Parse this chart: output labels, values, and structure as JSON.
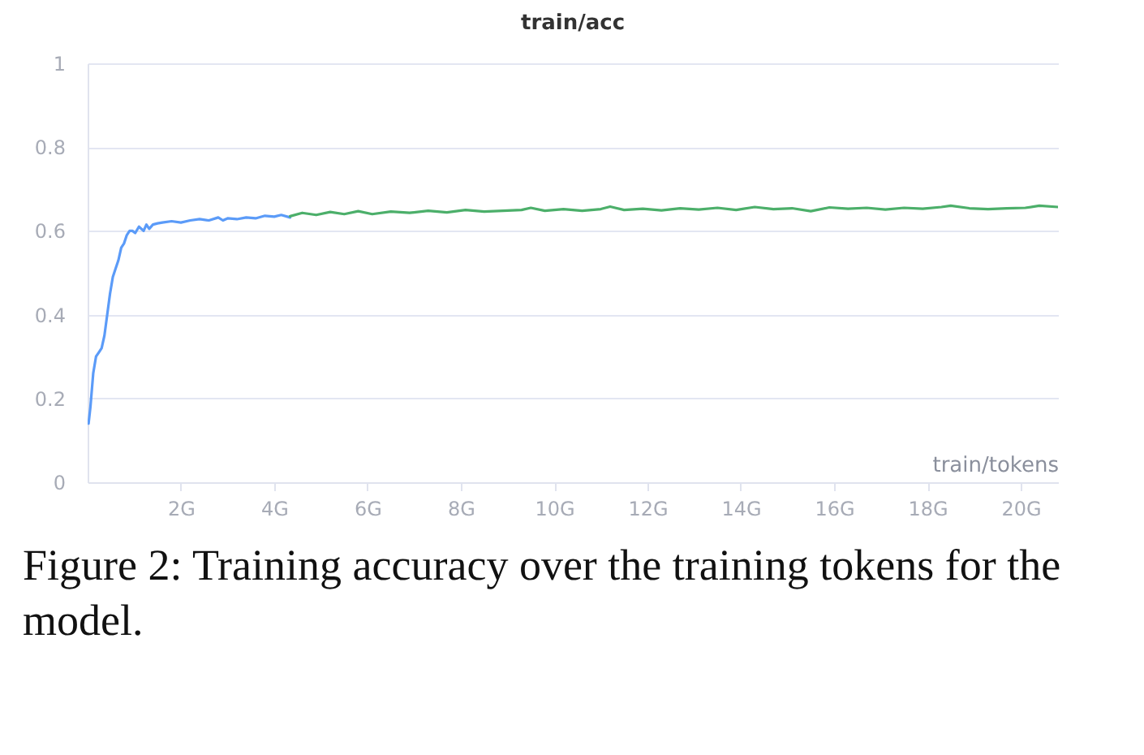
{
  "chart_data": {
    "type": "line",
    "title": "train/acc",
    "xlabel": "train/tokens",
    "annotations": [
      "Figure 2: Training accuracy over the training tokens for the model."
    ],
    "xlim": [
      0,
      20.8
    ],
    "ylim": [
      0,
      1
    ],
    "xticks": [
      {
        "value": 2,
        "label": "2G"
      },
      {
        "value": 4,
        "label": "4G"
      },
      {
        "value": 6,
        "label": "6G"
      },
      {
        "value": 8,
        "label": "8G"
      },
      {
        "value": 10,
        "label": "10G"
      },
      {
        "value": 12,
        "label": "12G"
      },
      {
        "value": 14,
        "label": "14G"
      },
      {
        "value": 16,
        "label": "16G"
      },
      {
        "value": 18,
        "label": "18G"
      },
      {
        "value": 20,
        "label": "20G"
      }
    ],
    "yticks": [
      0,
      0.2,
      0.4,
      0.6,
      0.8,
      1
    ],
    "grid": "y",
    "legend": false,
    "marker": "none",
    "line_style": "solid",
    "series": [
      {
        "color": "#5b9bf8",
        "x": [
          0.02,
          0.06,
          0.12,
          0.18,
          0.24,
          0.3,
          0.36,
          0.42,
          0.48,
          0.54,
          0.6,
          0.66,
          0.72,
          0.78,
          0.84,
          0.9,
          0.96,
          1.02,
          1.1,
          1.2,
          1.26,
          1.32,
          1.4,
          1.5,
          1.6,
          1.8,
          2.0,
          2.2,
          2.4,
          2.6,
          2.8,
          2.9,
          3.0,
          3.2,
          3.4,
          3.6,
          3.8,
          4.0,
          4.15,
          4.34
        ],
        "values": [
          0.14,
          0.18,
          0.26,
          0.3,
          0.31,
          0.32,
          0.35,
          0.4,
          0.45,
          0.49,
          0.51,
          0.53,
          0.56,
          0.57,
          0.59,
          0.6,
          0.6,
          0.595,
          0.61,
          0.6,
          0.615,
          0.605,
          0.615,
          0.618,
          0.62,
          0.623,
          0.62,
          0.625,
          0.628,
          0.625,
          0.632,
          0.625,
          0.63,
          0.628,
          0.632,
          0.63,
          0.636,
          0.634,
          0.638,
          0.632
        ]
      },
      {
        "color": "#4caf6a",
        "x": [
          4.34,
          4.6,
          4.9,
          5.2,
          5.5,
          5.8,
          6.1,
          6.5,
          6.9,
          7.3,
          7.7,
          8.1,
          8.5,
          8.9,
          9.3,
          9.5,
          9.8,
          10.2,
          10.6,
          11.0,
          11.2,
          11.5,
          11.9,
          12.3,
          12.7,
          13.1,
          13.5,
          13.9,
          14.3,
          14.7,
          15.1,
          15.5,
          15.9,
          16.3,
          16.7,
          17.1,
          17.5,
          17.9,
          18.3,
          18.5,
          18.9,
          19.3,
          19.7,
          20.1,
          20.4,
          20.8
        ],
        "values": [
          0.635,
          0.643,
          0.638,
          0.645,
          0.64,
          0.647,
          0.64,
          0.646,
          0.643,
          0.648,
          0.644,
          0.65,
          0.646,
          0.648,
          0.65,
          0.655,
          0.648,
          0.652,
          0.648,
          0.652,
          0.658,
          0.65,
          0.653,
          0.649,
          0.654,
          0.651,
          0.655,
          0.65,
          0.657,
          0.652,
          0.654,
          0.647,
          0.656,
          0.653,
          0.655,
          0.651,
          0.655,
          0.653,
          0.657,
          0.66,
          0.654,
          0.652,
          0.654,
          0.655,
          0.66,
          0.657
        ]
      }
    ]
  }
}
